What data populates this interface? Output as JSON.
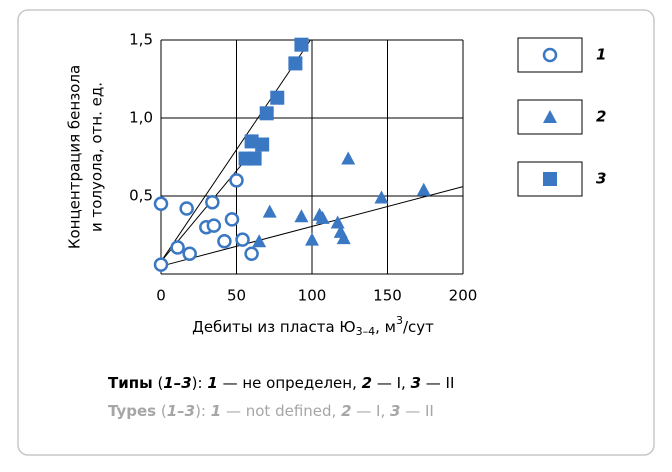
{
  "chart_data": {
    "type": "scatter",
    "y_label": [
      "Концентрация бензола",
      "и толуола, отн. ед."
    ],
    "x_label": {
      "text": "Дебиты из пласта Ю",
      "sub": "3–4",
      "mid": ", м",
      "sup": "3",
      "end": "/сут"
    },
    "xlim": [
      0,
      200
    ],
    "xticks": [
      0,
      50,
      100,
      150,
      200
    ],
    "ylim": [
      0,
      1.5
    ],
    "yticks": [
      {
        "value": 0.5,
        "label": "0,5"
      },
      {
        "value": 1.0,
        "label": "1,0"
      },
      {
        "value": 1.5,
        "label": "1,5"
      }
    ],
    "grid": true,
    "legend": "right",
    "series": [
      {
        "name": "1",
        "marker": "circle",
        "color": "#3b78c3",
        "x": [
          0,
          17,
          34,
          0,
          11,
          19,
          30,
          35,
          42,
          47,
          54,
          60,
          50
        ],
        "values": [
          0.45,
          0.42,
          0.46,
          0.06,
          0.17,
          0.13,
          0.3,
          0.31,
          0.21,
          0.35,
          0.22,
          0.13,
          0.6
        ],
        "trend": {
          "x": [
            0,
            55
          ],
          "values": [
            0.08,
            0.72
          ]
        }
      },
      {
        "name": "2",
        "marker": "triangle",
        "color": "#3b78c3",
        "x": [
          65,
          72,
          93,
          100,
          105,
          107,
          117,
          119,
          121,
          124,
          146,
          174
        ],
        "values": [
          0.21,
          0.4,
          0.37,
          0.22,
          0.38,
          0.36,
          0.33,
          0.27,
          0.23,
          0.74,
          0.49,
          0.54
        ],
        "trend": {
          "x": [
            0,
            200
          ],
          "values": [
            0.05,
            0.56
          ]
        }
      },
      {
        "name": "3",
        "marker": "square",
        "color": "#3b78c3",
        "x": [
          56,
          60,
          62,
          67,
          70,
          77,
          89,
          93
        ],
        "values": [
          0.74,
          0.85,
          0.74,
          0.83,
          1.03,
          1.13,
          1.35,
          1.47
        ],
        "trend": {
          "x": [
            0,
            99
          ],
          "values": [
            0.08,
            1.5
          ]
        }
      }
    ],
    "caption": [
      [
        {
          "text": "Типы",
          "bold": true
        },
        {
          "text": " ("
        },
        {
          "text": "1–3",
          "bold": true,
          "italic": true
        },
        {
          "text": "): "
        },
        {
          "text": "1",
          "bold": true,
          "italic": true
        },
        {
          "text": " — не определен, "
        },
        {
          "text": "2",
          "bold": true,
          "italic": true
        },
        {
          "text": " — I, "
        },
        {
          "text": "3",
          "bold": true,
          "italic": true
        },
        {
          "text": " — II"
        }
      ],
      [
        {
          "text": "Types",
          "bold": true
        },
        {
          "text": " ("
        },
        {
          "text": "1–3",
          "bold": true,
          "italic": true
        },
        {
          "text": "): "
        },
        {
          "text": "1",
          "bold": true,
          "italic": true
        },
        {
          "text": " — not defined, "
        },
        {
          "text": "2",
          "bold": true,
          "italic": true
        },
        {
          "text": " — I, "
        },
        {
          "text": "3",
          "bold": true,
          "italic": true
        },
        {
          "text": " — II"
        }
      ]
    ],
    "caption_colors": [
      "#000000",
      "#a6a6a6"
    ]
  }
}
